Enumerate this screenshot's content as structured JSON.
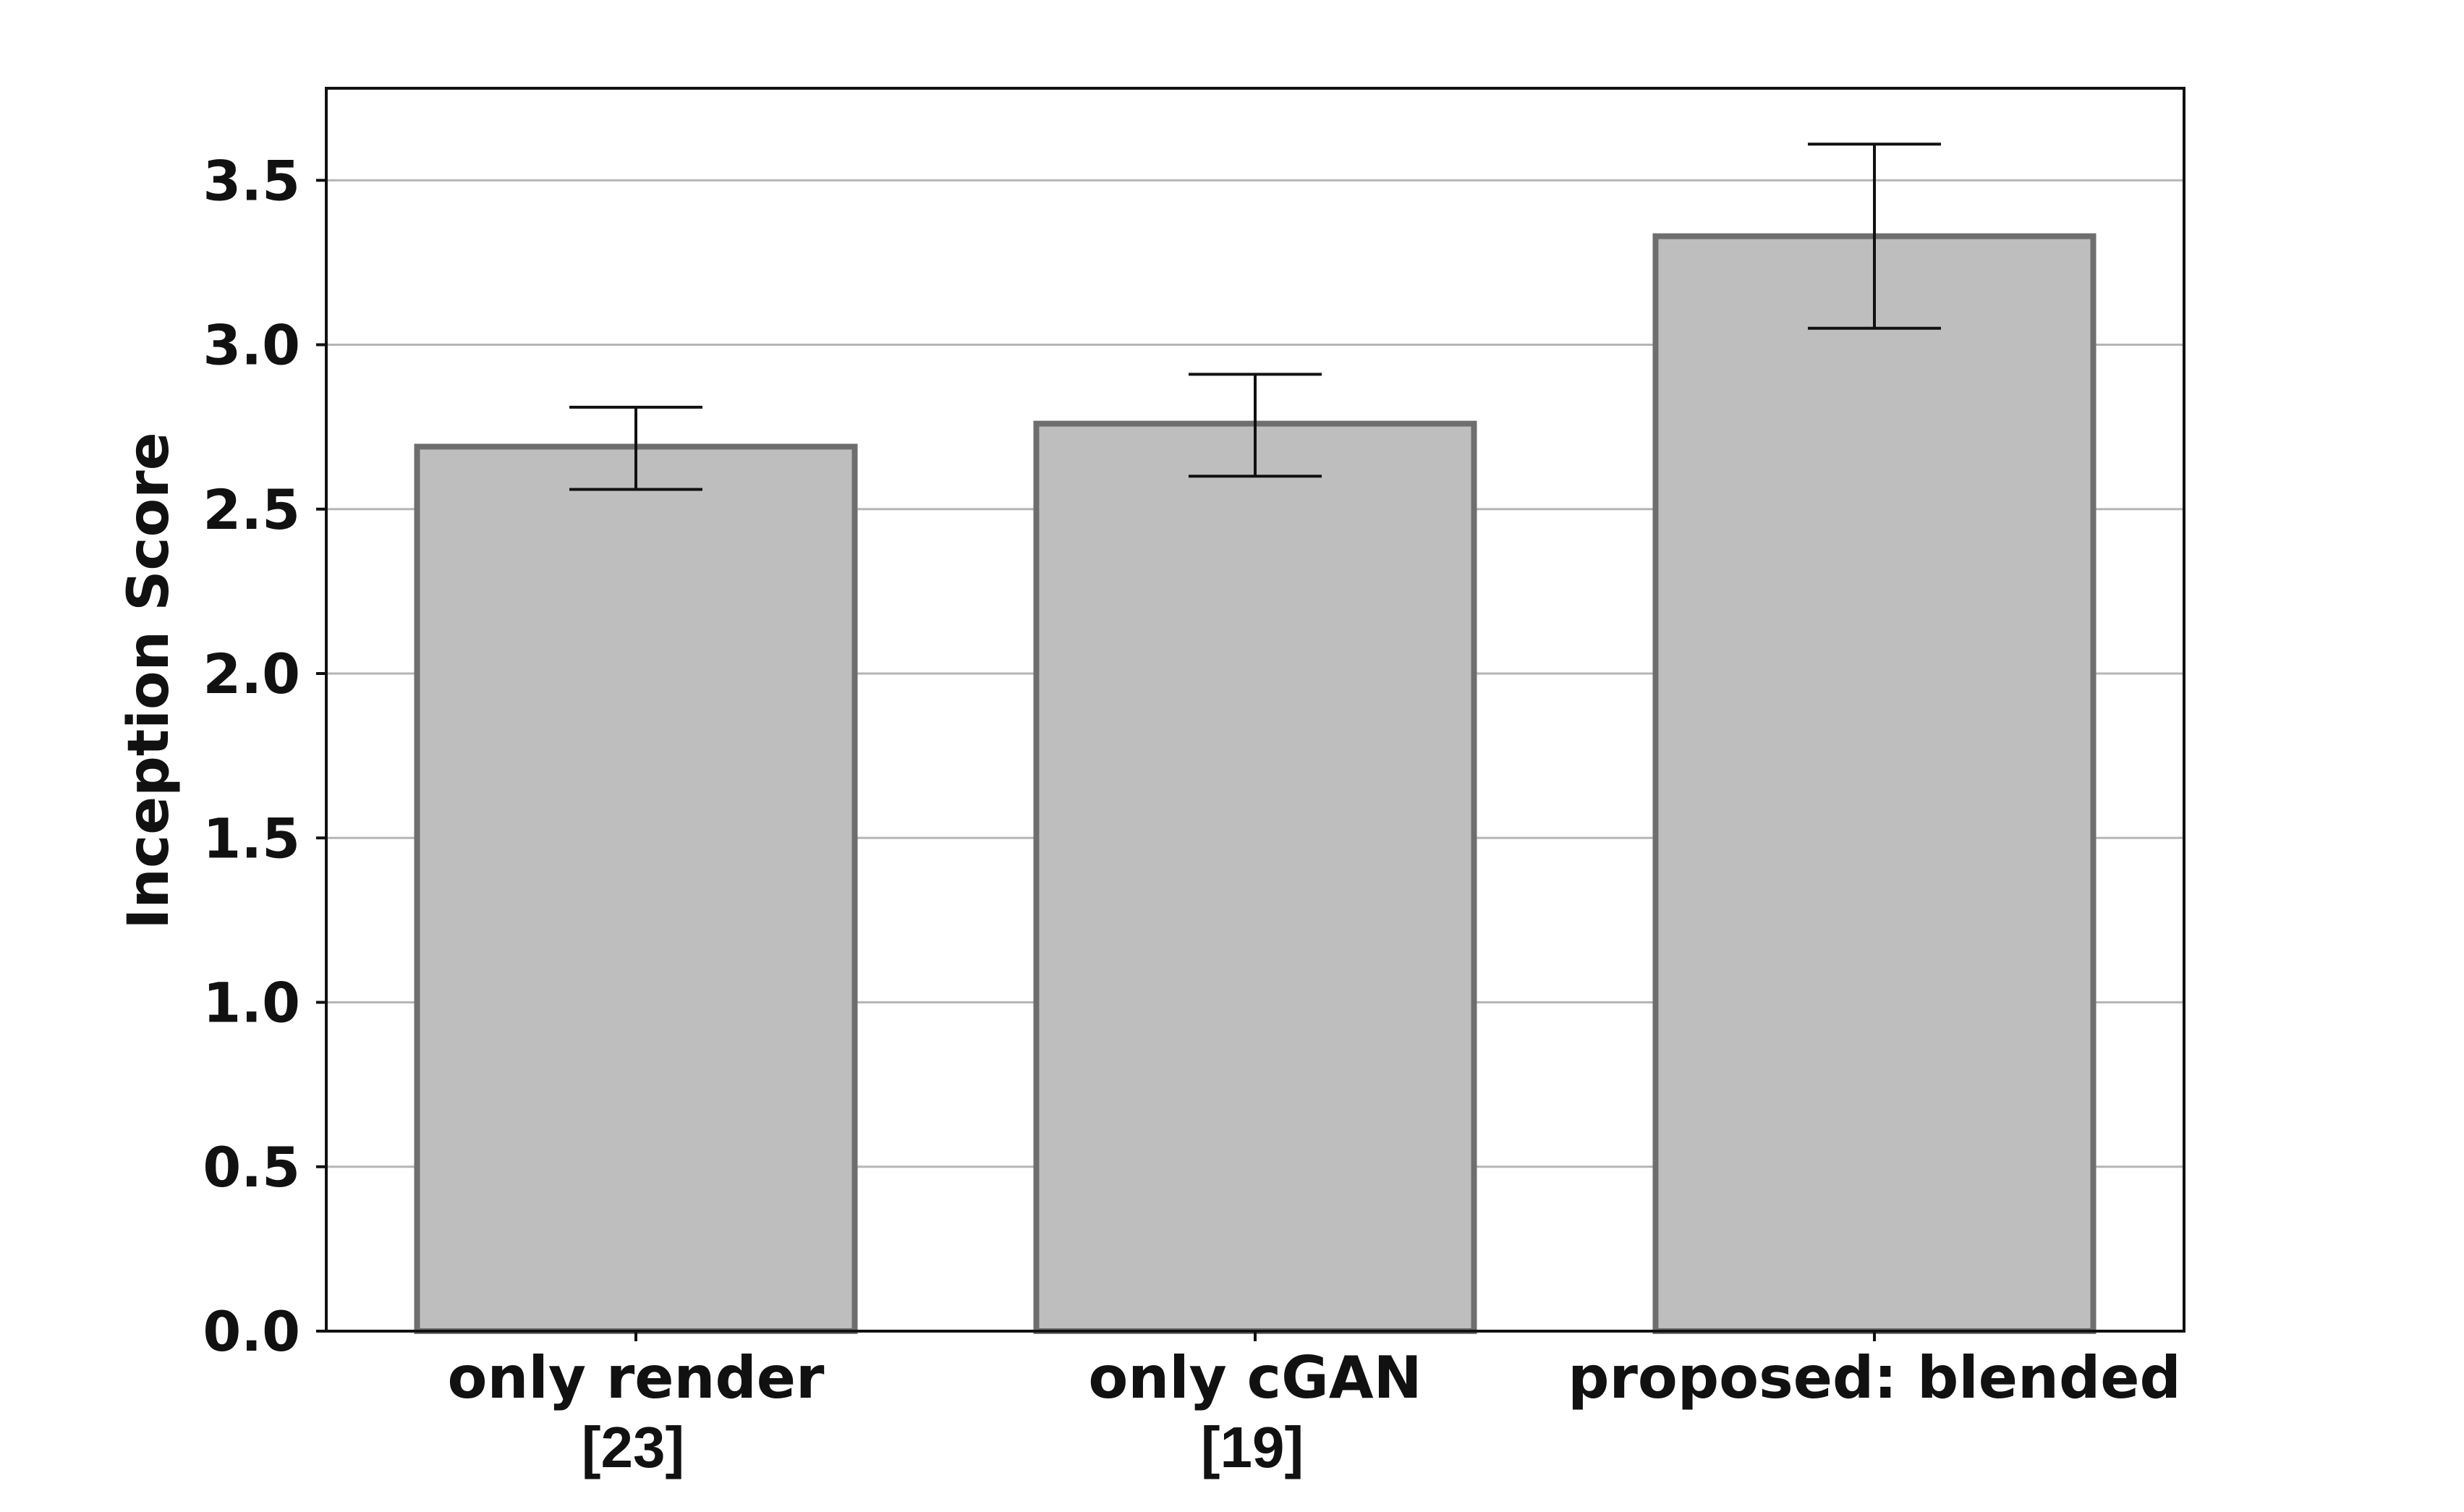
{
  "chart_data": {
    "type": "bar",
    "title": "",
    "xlabel": "",
    "ylabel": "Inception Score",
    "categories": [
      "only render",
      "only cGAN",
      "proposed: blended"
    ],
    "category_refs": [
      "[23]",
      "[19]",
      ""
    ],
    "values": [
      2.69,
      2.76,
      3.33
    ],
    "error_low": [
      2.56,
      2.6,
      3.05
    ],
    "error_high": [
      2.81,
      2.91,
      3.61
    ],
    "ylim": [
      0,
      3.78
    ],
    "yticks": [
      0.0,
      0.5,
      1.0,
      1.5,
      2.0,
      2.5,
      3.0,
      3.5
    ],
    "ytick_labels": [
      "0.0",
      "0.5",
      "1.0",
      "1.5",
      "2.0",
      "2.5",
      "3.0",
      "3.5"
    ],
    "grid": "horizontal",
    "legend": "none",
    "colors": {
      "bar_fill": "#bebebe",
      "bar_edge": "#6e6e6e",
      "grid": "#b5b5b5",
      "axis": "#111111",
      "error_bar": "#111111"
    }
  }
}
